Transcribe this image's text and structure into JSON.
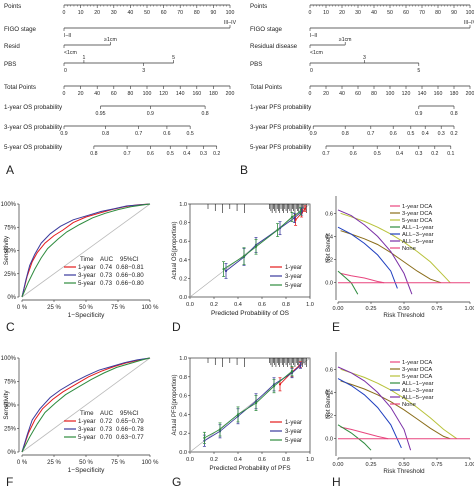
{
  "chart_data": [
    {
      "panel": "A",
      "type": "nomogram",
      "rows": [
        {
          "name": "Points",
          "ticks": [
            "0",
            "10",
            "20",
            "30",
            "40",
            "50",
            "60",
            "70",
            "80",
            "90",
            "100"
          ]
        },
        {
          "name": "FIGO stage",
          "labels": [
            "I–II",
            "III–IV"
          ]
        },
        {
          "name": "Resid",
          "labels": [
            "<1cm",
            "≥1cm"
          ]
        },
        {
          "name": "PBS",
          "labels": [
            "0",
            "1",
            "3",
            "5"
          ]
        },
        {
          "name": "Total Points",
          "ticks": [
            "0",
            "20",
            "40",
            "60",
            "80",
            "100",
            "120",
            "140",
            "160",
            "180",
            "200"
          ]
        },
        {
          "name": "1-year OS probability",
          "ticks": [
            "0.95",
            "0.9",
            "0.8"
          ]
        },
        {
          "name": "3-year OS probability",
          "ticks": [
            "0.9",
            "0.8",
            "0.7",
            "0.6",
            "0.5"
          ]
        },
        {
          "name": "5-year OS probability",
          "ticks": [
            "0.8",
            "0.7",
            "0.6",
            "0.5",
            "0.4",
            "0.3",
            "0.2"
          ]
        }
      ]
    },
    {
      "panel": "B",
      "type": "nomogram",
      "rows": [
        {
          "name": "Points",
          "ticks": [
            "0",
            "10",
            "20",
            "30",
            "40",
            "50",
            "60",
            "70",
            "80",
            "90",
            "100"
          ]
        },
        {
          "name": "FIGO stage",
          "labels": [
            "I–II",
            "III–IV"
          ]
        },
        {
          "name": "Residual disease",
          "labels": [
            "<1cm",
            "≥1cm"
          ]
        },
        {
          "name": "PBS",
          "labels": [
            "0",
            "3",
            "5"
          ]
        },
        {
          "name": "Total Points",
          "ticks": [
            "0",
            "20",
            "40",
            "60",
            "80",
            "100",
            "120",
            "140",
            "160",
            "180",
            "200"
          ]
        },
        {
          "name": "1-year PFS probability",
          "ticks": [
            "0.9",
            "0.8"
          ]
        },
        {
          "name": "3-year PFS probability",
          "ticks": [
            "0.9",
            "0.8",
            "0.7",
            "0.6",
            "0.5",
            "0.4",
            "0.3",
            "0.2"
          ]
        },
        {
          "name": "5-year PFS probability",
          "ticks": [
            "0.7",
            "0.6",
            "0.5",
            "0.4",
            "0.3",
            "0.2",
            "0.1"
          ]
        }
      ]
    },
    {
      "panel": "C",
      "type": "line",
      "subtype": "roc",
      "xlabel": "1−Specificity",
      "ylabel": "Sensitivity",
      "xticks": [
        "0 %",
        "25 %",
        "50 %",
        "75 %",
        "100 %"
      ],
      "yticks": [
        "0%",
        "25%",
        "50%",
        "75%",
        "100%"
      ],
      "table_header": [
        "Time",
        "AUC",
        "95%CI"
      ],
      "series": [
        {
          "name": "1-year",
          "color": "#e41a1c",
          "auc": "0.74",
          "ci": "0.68−0.81",
          "x": [
            0,
            0.04,
            0.08,
            0.12,
            0.18,
            0.25,
            0.32,
            0.4,
            0.5,
            0.6,
            0.7,
            0.8,
            0.9,
            1
          ],
          "y": [
            0,
            0.22,
            0.38,
            0.48,
            0.58,
            0.66,
            0.72,
            0.8,
            0.86,
            0.9,
            0.94,
            0.97,
            0.99,
            1
          ]
        },
        {
          "name": "3-year",
          "color": "#3a3a9c",
          "auc": "0.73",
          "ci": "0.66−0.80",
          "x": [
            0,
            0.03,
            0.06,
            0.1,
            0.15,
            0.22,
            0.3,
            0.4,
            0.52,
            0.62,
            0.72,
            0.82,
            0.92,
            1
          ],
          "y": [
            0,
            0.18,
            0.34,
            0.46,
            0.58,
            0.68,
            0.76,
            0.83,
            0.88,
            0.92,
            0.95,
            0.98,
            0.99,
            1
          ]
        },
        {
          "name": "5-year",
          "color": "#2e8b3e",
          "auc": "0.73",
          "ci": "0.66−0.80",
          "x": [
            0,
            0.05,
            0.1,
            0.15,
            0.2,
            0.28,
            0.35,
            0.45,
            0.55,
            0.65,
            0.75,
            0.85,
            0.95,
            1
          ],
          "y": [
            0,
            0.16,
            0.3,
            0.42,
            0.52,
            0.62,
            0.7,
            0.78,
            0.85,
            0.9,
            0.94,
            0.97,
            0.99,
            1
          ]
        }
      ]
    },
    {
      "panel": "D",
      "type": "line",
      "subtype": "calibration",
      "xlabel": "Predicted Probability of OS",
      "ylabel": "Actual OS(proportion)",
      "xlim": [
        0,
        1
      ],
      "ylim": [
        0,
        1
      ],
      "xticks": [
        "0.0",
        "0.2",
        "0.4",
        "0.6",
        "0.8",
        "1.0"
      ],
      "yticks": [
        "0.0",
        "0.2",
        "0.4",
        "0.6",
        "0.8",
        "1.0"
      ],
      "series": [
        {
          "name": "1-year",
          "color": "#e41a1c",
          "x": [
            0.88,
            0.93,
            0.96
          ],
          "y": [
            0.83,
            0.9,
            0.95
          ],
          "err": [
            0.06,
            0.04,
            0.03
          ]
        },
        {
          "name": "3-year",
          "color": "#3a3a9c",
          "x": [
            0.3,
            0.45,
            0.55,
            0.75,
            0.87,
            0.93
          ],
          "y": [
            0.28,
            0.43,
            0.56,
            0.74,
            0.85,
            0.92
          ],
          "err": [
            0.08,
            0.09,
            0.08,
            0.07,
            0.05,
            0.04
          ]
        },
        {
          "name": "5-year",
          "color": "#2e8b3e",
          "x": [
            0.28,
            0.45,
            0.55,
            0.73,
            0.85,
            0.92
          ],
          "y": [
            0.3,
            0.44,
            0.54,
            0.72,
            0.86,
            0.92
          ],
          "err": [
            0.08,
            0.09,
            0.08,
            0.07,
            0.05,
            0.04
          ]
        }
      ]
    },
    {
      "panel": "E",
      "type": "line",
      "subtype": "decision-curve",
      "xlabel": "Risk Threshold",
      "ylabel": "Net Benefit",
      "xlim": [
        0,
        1
      ],
      "ylim": [
        -0.15,
        0.75
      ],
      "xticks": [
        "0.00",
        "0.25",
        "0.50",
        "0.75",
        "1.00"
      ],
      "yticks": [
        "0.0",
        "0.2",
        "0.4",
        "0.6"
      ],
      "series": [
        {
          "name": "1-year DCA",
          "color": "#e8457e",
          "x": [
            0.02,
            0.1,
            0.2,
            0.3,
            0.35
          ],
          "y": [
            0.08,
            0.06,
            0.04,
            0.01,
            0
          ]
        },
        {
          "name": "3-year DCA",
          "color": "#8a6d1a",
          "x": [
            0.02,
            0.1,
            0.2,
            0.3,
            0.4,
            0.5,
            0.6,
            0.7,
            0.78
          ],
          "y": [
            0.45,
            0.42,
            0.38,
            0.33,
            0.26,
            0.18,
            0.1,
            0.03,
            0
          ]
        },
        {
          "name": "5-year DCA",
          "color": "#b8c23a",
          "x": [
            0.02,
            0.1,
            0.2,
            0.3,
            0.4,
            0.5,
            0.6,
            0.7,
            0.8,
            0.85
          ],
          "y": [
            0.6,
            0.57,
            0.53,
            0.48,
            0.42,
            0.35,
            0.27,
            0.18,
            0.06,
            0
          ]
        },
        {
          "name": "ALL−1−year",
          "color": "#2e8b3e",
          "x": [
            0,
            0.05,
            0.1,
            0.15
          ],
          "y": [
            0.1,
            0.05,
            0,
            -0.1
          ]
        },
        {
          "name": "ALL−3−year",
          "color": "#1f3fbf",
          "x": [
            0,
            0.1,
            0.2,
            0.3,
            0.4,
            0.45
          ],
          "y": [
            0.48,
            0.42,
            0.34,
            0.24,
            0.1,
            -0.05
          ]
        },
        {
          "name": "ALL−5−year",
          "color": "#7a2fa6",
          "x": [
            0,
            0.1,
            0.2,
            0.3,
            0.4,
            0.5,
            0.56
          ],
          "y": [
            0.63,
            0.58,
            0.5,
            0.4,
            0.27,
            0.08,
            -0.1
          ]
        },
        {
          "name": "None",
          "color": "#e8457e",
          "x": [
            0,
            1
          ],
          "y": [
            0,
            0
          ]
        }
      ]
    },
    {
      "panel": "F",
      "type": "line",
      "subtype": "roc",
      "xlabel": "1−Specificity",
      "ylabel": "Sensitivity",
      "xticks": [
        "0 %",
        "25 %",
        "50 %",
        "75 %",
        "100 %"
      ],
      "yticks": [
        "0%",
        "25%",
        "50%",
        "75%",
        "100%"
      ],
      "table_header": [
        "Time",
        "AUC",
        "95%CI"
      ],
      "series": [
        {
          "name": "1-year",
          "color": "#e41a1c",
          "auc": "0.72",
          "ci": "0.65−0.79",
          "x": [
            0,
            0.05,
            0.1,
            0.16,
            0.24,
            0.32,
            0.42,
            0.52,
            0.62,
            0.72,
            0.82,
            0.92,
            1
          ],
          "y": [
            0,
            0.2,
            0.34,
            0.46,
            0.56,
            0.64,
            0.72,
            0.8,
            0.86,
            0.91,
            0.95,
            0.98,
            1
          ]
        },
        {
          "name": "3-year",
          "color": "#3a3a9c",
          "auc": "0.73",
          "ci": "0.66−0.78",
          "x": [
            0,
            0.04,
            0.08,
            0.14,
            0.22,
            0.3,
            0.4,
            0.5,
            0.6,
            0.7,
            0.8,
            0.9,
            1
          ],
          "y": [
            0,
            0.18,
            0.34,
            0.46,
            0.58,
            0.66,
            0.74,
            0.81,
            0.87,
            0.91,
            0.95,
            0.98,
            1
          ]
        },
        {
          "name": "5-year",
          "color": "#2e8b3e",
          "auc": "0.70",
          "ci": "0.63−0.77",
          "x": [
            0,
            0.06,
            0.12,
            0.18,
            0.26,
            0.34,
            0.44,
            0.54,
            0.64,
            0.74,
            0.84,
            0.94,
            1
          ],
          "y": [
            0,
            0.16,
            0.3,
            0.42,
            0.52,
            0.61,
            0.69,
            0.77,
            0.84,
            0.9,
            0.94,
            0.98,
            1
          ]
        }
      ]
    },
    {
      "panel": "G",
      "type": "line",
      "subtype": "calibration",
      "xlabel": "Predicted Probability of PFS",
      "ylabel": "Actual PFS(proportion)",
      "xlim": [
        0,
        1
      ],
      "ylim": [
        0,
        1
      ],
      "xticks": [
        "0.0",
        "0.2",
        "0.4",
        "0.6",
        "0.8",
        "1.0"
      ],
      "yticks": [
        "0.0",
        "0.2",
        "0.4",
        "0.6",
        "0.8",
        "1.0"
      ],
      "series": [
        {
          "name": "1-year",
          "color": "#e41a1c",
          "x": [
            0.75,
            0.85,
            0.92
          ],
          "y": [
            0.72,
            0.85,
            0.93
          ],
          "err": [
            0.07,
            0.05,
            0.03
          ]
        },
        {
          "name": "3-year",
          "color": "#3a3a9c",
          "x": [
            0.12,
            0.25,
            0.4,
            0.55,
            0.7,
            0.85,
            0.92
          ],
          "y": [
            0.12,
            0.22,
            0.38,
            0.54,
            0.72,
            0.84,
            0.92
          ],
          "err": [
            0.06,
            0.07,
            0.08,
            0.08,
            0.07,
            0.05,
            0.03
          ]
        },
        {
          "name": "5-year",
          "color": "#2e8b3e",
          "x": [
            0.12,
            0.25,
            0.4,
            0.55,
            0.7,
            0.85
          ],
          "y": [
            0.15,
            0.24,
            0.4,
            0.52,
            0.7,
            0.86
          ],
          "err": [
            0.06,
            0.07,
            0.08,
            0.08,
            0.07,
            0.05
          ]
        }
      ]
    },
    {
      "panel": "H",
      "type": "line",
      "subtype": "decision-curve",
      "xlabel": "Risk Threshold",
      "ylabel": "Net Benefit",
      "xlim": [
        0,
        1
      ],
      "ylim": [
        -0.15,
        0.75
      ],
      "xticks": [
        "0.00",
        "0.25",
        "0.50",
        "0.75",
        "1.00"
      ],
      "yticks": [
        "0.0",
        "0.2",
        "0.4",
        "0.6"
      ],
      "series": [
        {
          "name": "1-year DCA",
          "color": "#e8457e",
          "x": [
            0.02,
            0.1,
            0.2,
            0.3,
            0.38
          ],
          "y": [
            0.1,
            0.08,
            0.05,
            0.02,
            0
          ]
        },
        {
          "name": "3-year DCA",
          "color": "#8a6d1a",
          "x": [
            0.02,
            0.1,
            0.2,
            0.3,
            0.4,
            0.5,
            0.6,
            0.7,
            0.8,
            0.85
          ],
          "y": [
            0.5,
            0.47,
            0.43,
            0.38,
            0.32,
            0.25,
            0.17,
            0.09,
            0.02,
            0
          ]
        },
        {
          "name": "5-year DCA",
          "color": "#b8c23a",
          "x": [
            0.02,
            0.1,
            0.2,
            0.3,
            0.4,
            0.5,
            0.6,
            0.7,
            0.8,
            0.9
          ],
          "y": [
            0.6,
            0.57,
            0.53,
            0.48,
            0.42,
            0.35,
            0.27,
            0.18,
            0.08,
            0
          ]
        },
        {
          "name": "ALL−1−year",
          "color": "#2e8b3e",
          "x": [
            0,
            0.1,
            0.2,
            0.25
          ],
          "y": [
            0.12,
            0.05,
            -0.04,
            -0.1
          ]
        },
        {
          "name": "ALL−3−year",
          "color": "#1f3fbf",
          "x": [
            0,
            0.1,
            0.2,
            0.3,
            0.4,
            0.48
          ],
          "y": [
            0.52,
            0.46,
            0.38,
            0.27,
            0.12,
            -0.08
          ]
        },
        {
          "name": "ALL−5−year",
          "color": "#7a2fa6",
          "x": [
            0,
            0.1,
            0.2,
            0.3,
            0.4,
            0.5,
            0.55
          ],
          "y": [
            0.62,
            0.57,
            0.5,
            0.4,
            0.27,
            0.08,
            -0.1
          ]
        },
        {
          "name": "None",
          "color": "#e8457e",
          "x": [
            0,
            1
          ],
          "y": [
            0,
            0
          ]
        }
      ]
    }
  ]
}
